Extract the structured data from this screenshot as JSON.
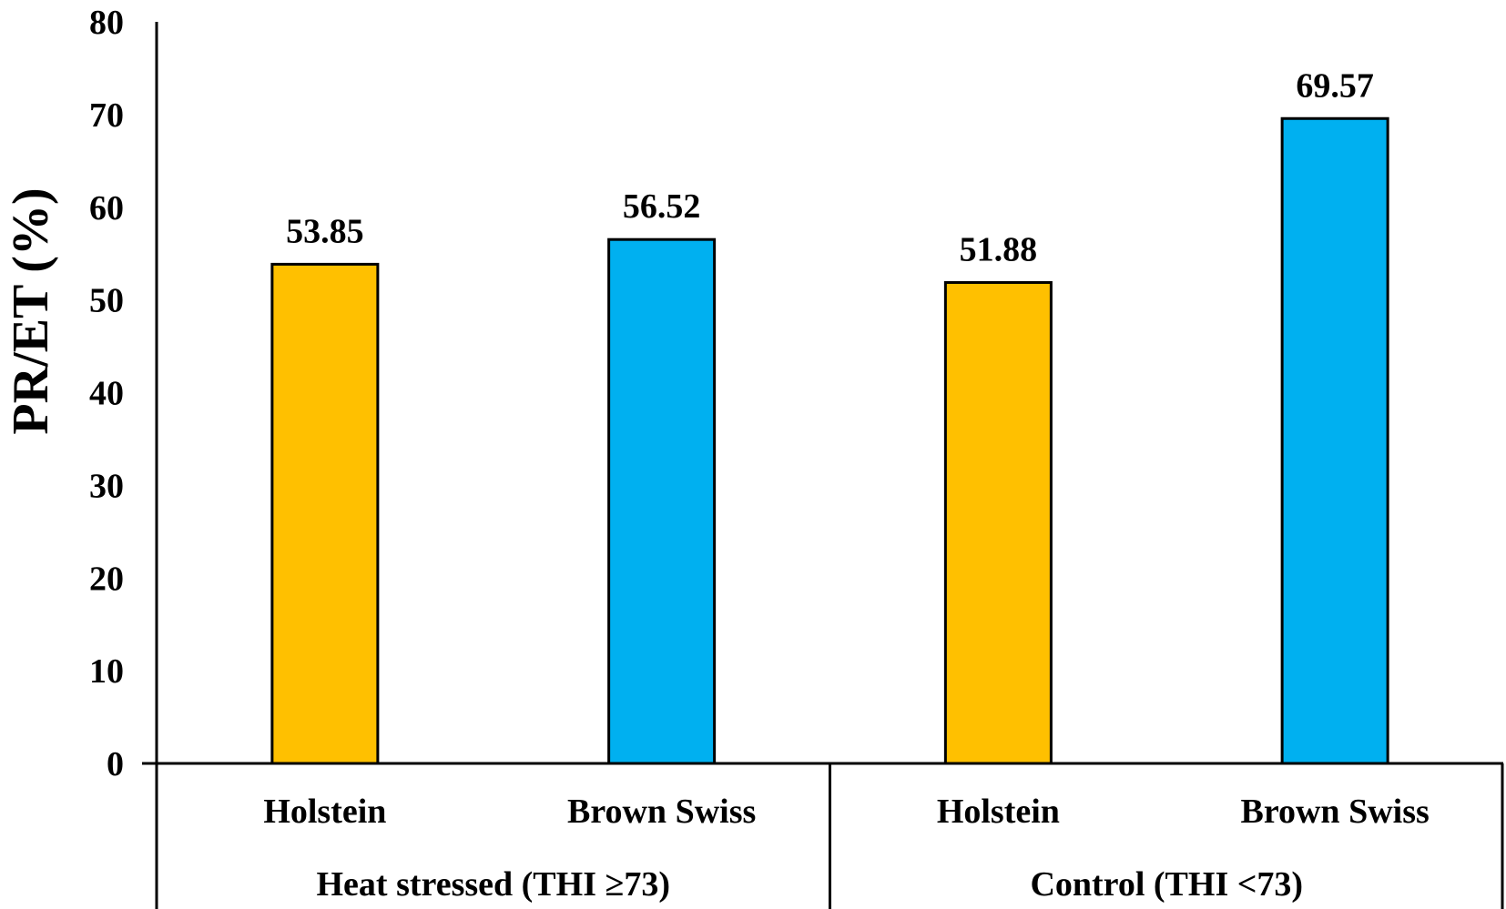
{
  "chart_data": {
    "type": "bar",
    "ylabel": "PR/ET (%)",
    "ylim": [
      0,
      80
    ],
    "yticks": [
      "0",
      "10",
      "20",
      "30",
      "40",
      "50",
      "60",
      "70",
      "80"
    ],
    "grid": false,
    "groups": [
      {
        "label": "Heat stressed  (THI ≥73)",
        "categories": [
          "Holstein",
          "Brown Swiss"
        ]
      },
      {
        "label": "Control  (THI <73)",
        "categories": [
          "Holstein",
          "Brown Swiss"
        ]
      }
    ],
    "bars": [
      {
        "category": "Holstein",
        "value": 53.85,
        "value_label": "53.85",
        "color": "#FFC000"
      },
      {
        "category": "Brown Swiss",
        "value": 56.52,
        "value_label": "56.52",
        "color": "#00B0F0"
      },
      {
        "category": "Holstein",
        "value": 51.88,
        "value_label": "51.88",
        "color": "#FFC000"
      },
      {
        "category": "Brown Swiss",
        "value": 69.57,
        "value_label": "69.57",
        "color": "#00B0F0"
      }
    ]
  }
}
